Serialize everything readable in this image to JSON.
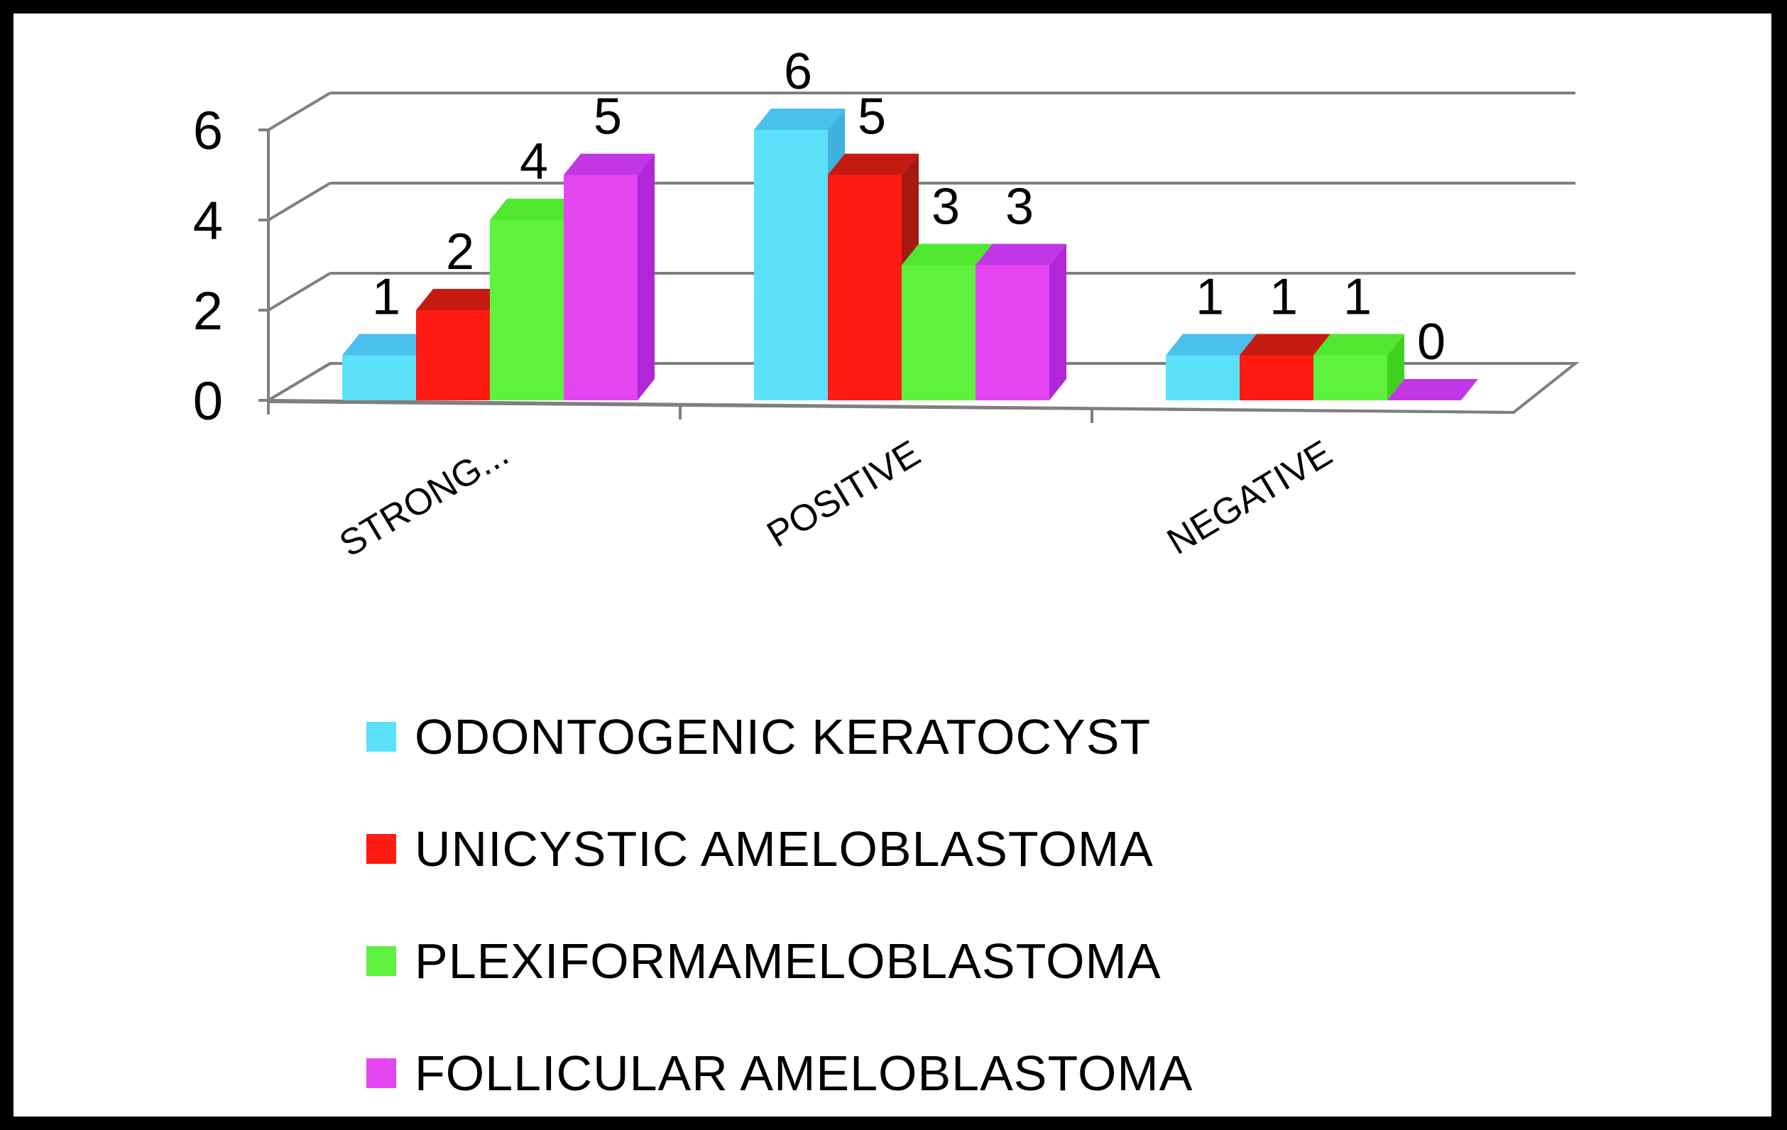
{
  "chart_data": {
    "type": "bar",
    "style": "3d-clustered-column",
    "categories": [
      "STRONG...",
      "POSITIVE",
      "NEGATIVE"
    ],
    "series": [
      {
        "name": "ODONTOGENIC KERATOCYST",
        "values": [
          1,
          6,
          1
        ],
        "color": "#5ce1fb",
        "side_color": "#3fb2e0",
        "top_color": "#49c0ee"
      },
      {
        "name": "UNICYSTIC AMELOBLASTOMA",
        "values": [
          2,
          5,
          1
        ],
        "color": "#ff1a12",
        "side_color": "#a51a10",
        "top_color": "#c51a12"
      },
      {
        "name": "PLEXIFORMAMELOBLASTOMA",
        "values": [
          4,
          3,
          1
        ],
        "color": "#5ef23e",
        "side_color": "#3fd11f",
        "top_color": "#4fe82f"
      },
      {
        "name": "FOLLICULAR AMELOBLASTOMA",
        "values": [
          5,
          3,
          0
        ],
        "color": "#e445f1",
        "side_color": "#b226da",
        "top_color": "#c236e6"
      }
    ],
    "yticks": [
      0,
      2,
      4,
      6
    ],
    "ylim": [
      0,
      6
    ],
    "title": "",
    "xlabel": "",
    "ylabel": "",
    "legend_position": "bottom",
    "grid": true
  }
}
